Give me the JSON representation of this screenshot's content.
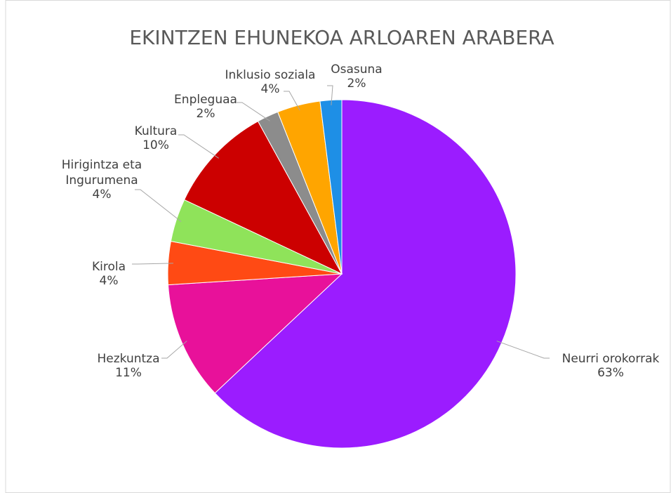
{
  "chart_data": {
    "type": "pie",
    "title": "EKINTZEN EHUNEKOA ARLOAREN ARABERA",
    "categories": [
      "Neurri orokorrak",
      "Hezkuntza",
      "Kirola",
      "Hirigintza eta Ingurumena",
      "Kultura",
      "Enpleguaa",
      "Inklusio soziala",
      "Osasuna"
    ],
    "values": [
      63,
      11,
      4,
      4,
      10,
      2,
      4,
      2
    ],
    "value_labels": [
      "63%",
      "11%",
      "4%",
      "4%",
      "10%",
      "2%",
      "4%",
      "2%"
    ],
    "colors": [
      "#9b1cff",
      "#e8119a",
      "#ff4a14",
      "#8fe35a",
      "#cc0000",
      "#8c8c8c",
      "#ffa500",
      "#1e8fe6"
    ]
  }
}
